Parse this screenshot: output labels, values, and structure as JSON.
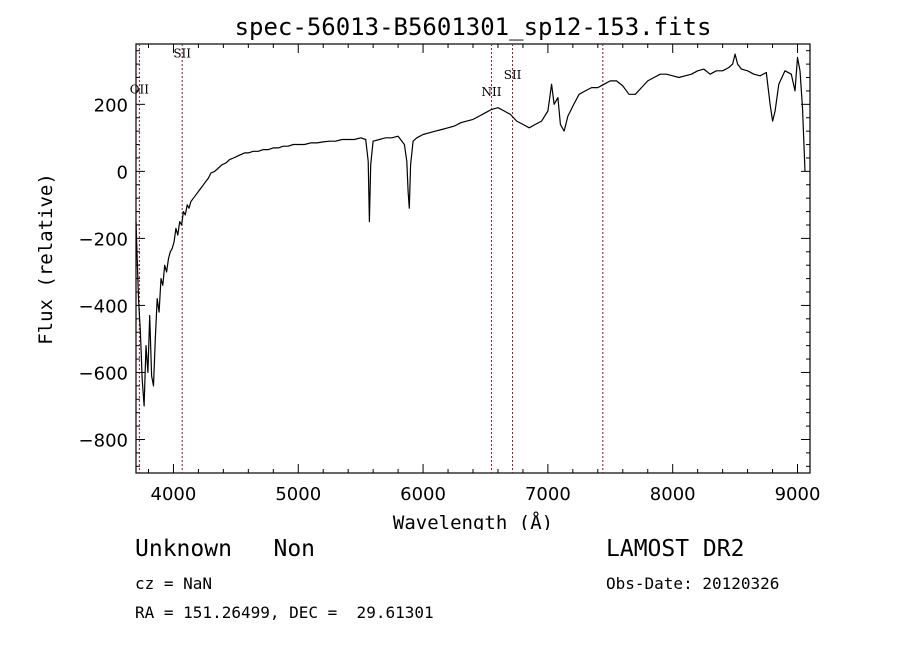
{
  "chart_data": {
    "type": "line",
    "title": "spec-56013-B5601301_sp12-153.fits",
    "xlabel": "Wavelength (Å)",
    "ylabel": "Flux (relative)",
    "xlim": [
      3700,
      9100
    ],
    "ylim": [
      -900,
      380
    ],
    "x_ticks": [
      4000,
      5000,
      6000,
      7000,
      8000,
      9000
    ],
    "y_ticks": [
      -800,
      -600,
      -400,
      -200,
      0,
      200
    ],
    "grid": false,
    "line_color": "#000000",
    "marker_line_color": "#8b1a1a",
    "spectrum": {
      "x": [
        3700,
        3720,
        3735,
        3750,
        3765,
        3780,
        3795,
        3810,
        3825,
        3840,
        3855,
        3870,
        3885,
        3900,
        3915,
        3930,
        3945,
        3960,
        3975,
        3990,
        4005,
        4020,
        4035,
        4050,
        4065,
        4080,
        4095,
        4110,
        4125,
        4140,
        4160,
        4180,
        4200,
        4220,
        4240,
        4260,
        4280,
        4300,
        4330,
        4360,
        4390,
        4420,
        4450,
        4480,
        4510,
        4540,
        4570,
        4600,
        4640,
        4680,
        4720,
        4760,
        4800,
        4840,
        4880,
        4920,
        4960,
        5000,
        5050,
        5100,
        5150,
        5200,
        5250,
        5300,
        5350,
        5400,
        5450,
        5500,
        5540,
        5560,
        5570,
        5580,
        5600,
        5650,
        5700,
        5750,
        5800,
        5850,
        5870,
        5880,
        5890,
        5900,
        5920,
        5950,
        6000,
        6050,
        6100,
        6150,
        6200,
        6250,
        6300,
        6350,
        6400,
        6450,
        6500,
        6550,
        6600,
        6650,
        6700,
        6750,
        6800,
        6850,
        6900,
        6950,
        7000,
        7030,
        7050,
        7080,
        7100,
        7130,
        7160,
        7200,
        7250,
        7300,
        7350,
        7400,
        7450,
        7500,
        7550,
        7600,
        7650,
        7700,
        7750,
        7800,
        7850,
        7900,
        7950,
        8000,
        8050,
        8100,
        8150,
        8200,
        8250,
        8300,
        8350,
        8400,
        8450,
        8480,
        8500,
        8520,
        8550,
        8600,
        8650,
        8700,
        8750,
        8780,
        8800,
        8820,
        8850,
        8900,
        8950,
        8980,
        9000,
        9020,
        9040,
        9060
      ],
      "y": [
        -150,
        -380,
        -480,
        -620,
        -700,
        -520,
        -600,
        -430,
        -610,
        -640,
        -500,
        -380,
        -420,
        -320,
        -340,
        -280,
        -300,
        -260,
        -240,
        -230,
        -210,
        -170,
        -190,
        -150,
        -160,
        -120,
        -130,
        -100,
        -110,
        -90,
        -80,
        -70,
        -60,
        -50,
        -40,
        -30,
        -20,
        -5,
        0,
        10,
        20,
        25,
        35,
        40,
        45,
        50,
        55,
        55,
        60,
        60,
        65,
        65,
        70,
        70,
        75,
        75,
        80,
        80,
        80,
        85,
        85,
        88,
        90,
        90,
        95,
        95,
        95,
        100,
        95,
        30,
        -150,
        20,
        90,
        95,
        100,
        100,
        105,
        80,
        30,
        -60,
        -110,
        20,
        90,
        100,
        110,
        115,
        120,
        125,
        130,
        135,
        145,
        150,
        155,
        165,
        175,
        185,
        190,
        180,
        170,
        150,
        140,
        130,
        140,
        150,
        180,
        260,
        200,
        220,
        140,
        120,
        165,
        195,
        230,
        240,
        250,
        250,
        260,
        270,
        270,
        255,
        230,
        230,
        250,
        270,
        280,
        290,
        290,
        285,
        280,
        285,
        290,
        300,
        305,
        290,
        300,
        300,
        310,
        320,
        350,
        320,
        305,
        300,
        290,
        285,
        295,
        200,
        150,
        180,
        260,
        300,
        290,
        240,
        340,
        300,
        190,
        0
      ]
    },
    "lines": [
      {
        "label": "OII",
        "x": 3727,
        "label_y": 232
      },
      {
        "label": "SII",
        "x": 4070,
        "label_y": 340
      },
      {
        "label": "NII",
        "x": 6548,
        "label_y": 225
      },
      {
        "label": "SII",
        "x": 6717,
        "label_y": 275
      },
      {
        "label": "",
        "x": 7440,
        "label_y": 0
      }
    ]
  },
  "info": {
    "object_class": "Unknown",
    "object_subclass": "Non",
    "survey": "LAMOST DR2",
    "redshift": "cz = NaN",
    "obs_date": "Obs-Date: 20120326",
    "coords": "RA = 151.26499, DEC =  29.61301"
  }
}
